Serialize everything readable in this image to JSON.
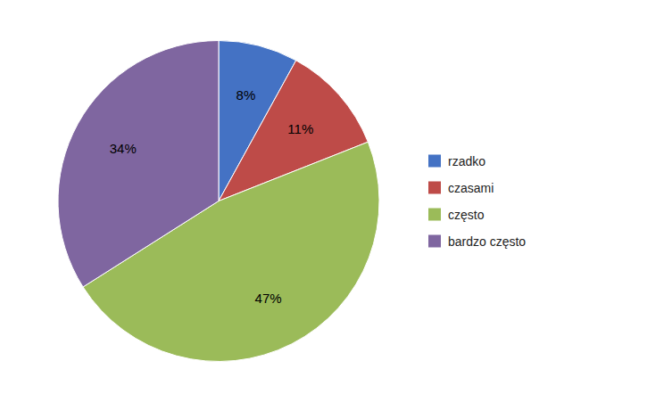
{
  "chart_data": {
    "type": "pie",
    "categories": [
      "rzadko",
      "czasami",
      "często",
      "bardzo często"
    ],
    "values": [
      8,
      11,
      47,
      34
    ],
    "value_labels": [
      "8%",
      "11%",
      "47%",
      "34%"
    ],
    "colors": [
      "#4472c4",
      "#be4b48",
      "#9bbb59",
      "#7f66a0"
    ],
    "data_labels": true,
    "legend": "right"
  }
}
